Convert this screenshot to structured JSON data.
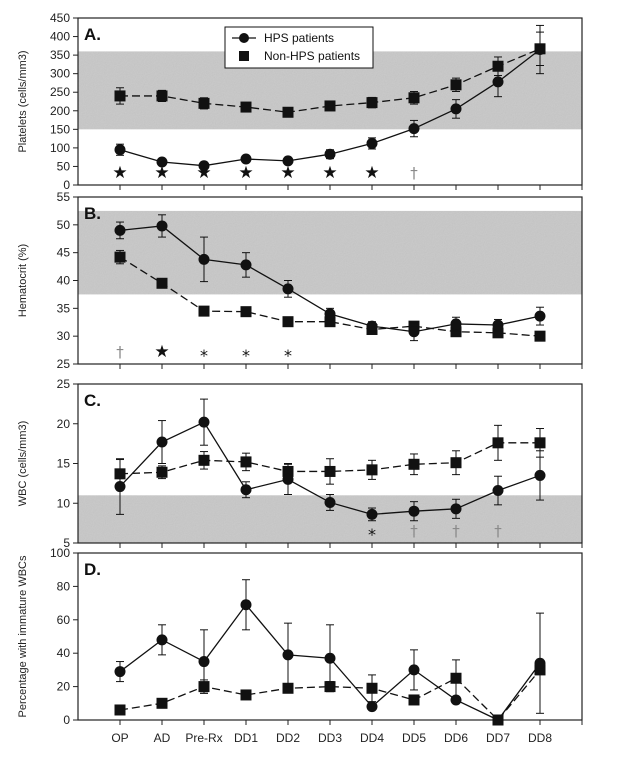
{
  "chart_data": {
    "type": "line",
    "categories": [
      "OP",
      "AD",
      "Pre-Rx",
      "DD1",
      "DD2",
      "DD3",
      "DD4",
      "DD5",
      "DD6",
      "DD7",
      "DD8"
    ],
    "legend": {
      "placement": "top-center (inside panel A)",
      "entries": [
        {
          "name": "HPS patients",
          "marker": "circle",
          "line": "solid"
        },
        {
          "name": "Non-HPS patients",
          "marker": "square",
          "line": "dashed"
        }
      ]
    },
    "colors": {
      "band": "#c8c8c8",
      "line": "#111111",
      "dagger": "#8a8a8a"
    },
    "panels": [
      {
        "id": "A",
        "letter": "A.",
        "ylabel": "Platelets (cells/mm3)",
        "ylim": [
          0,
          450
        ],
        "yticks": [
          0,
          50,
          100,
          150,
          200,
          250,
          300,
          350,
          400,
          450
        ],
        "normal_range": [
          150,
          360
        ],
        "series": [
          {
            "name": "HPS patients",
            "values": [
              95,
              62,
              52,
              70,
              65,
              83,
              112,
              152,
              205,
              278,
              365
            ],
            "err": [
              15,
              6,
              8,
              8,
              8,
              12,
              15,
              22,
              25,
              40,
              65
            ]
          },
          {
            "name": "Non-HPS patients",
            "values": [
              240,
              240,
              220,
              210,
              196,
              213,
              222,
              235,
              270,
              320,
              367
            ],
            "err": [
              22,
              15,
              15,
              10,
              8,
              10,
              14,
              17,
              18,
              25,
              45
            ]
          }
        ],
        "annotations": [
          "★",
          "★",
          "★",
          "★",
          "★",
          "★",
          "★",
          "†",
          "",
          "",
          ""
        ]
      },
      {
        "id": "B",
        "letter": "B.",
        "ylabel": "Hematocrit (%)",
        "ylim": [
          25,
          55
        ],
        "yticks": [
          25,
          30,
          35,
          40,
          45,
          50,
          55
        ],
        "normal_range": [
          37.5,
          52.5
        ],
        "series": [
          {
            "name": "HPS patients",
            "values": [
              49,
              49.8,
              43.8,
              42.8,
              38.5,
              34,
              31.8,
              30.8,
              32.2,
              32,
              33.6
            ],
            "err": [
              1.5,
              2,
              4,
              2.2,
              1.5,
              1,
              0.8,
              1.6,
              1.2,
              1,
              1.6
            ]
          },
          {
            "name": "Non-HPS patients",
            "values": [
              44.2,
              39.5,
              34.5,
              34.4,
              32.6,
              32.6,
              31.2,
              31.8,
              30.8,
              30.6,
              30
            ],
            "err": [
              1.2,
              0,
              0,
              0,
              0,
              0,
              0,
              0,
              0,
              0,
              0
            ]
          }
        ],
        "annotations": [
          "†",
          "★",
          "*",
          "*",
          "*",
          "",
          "",
          "",
          "",
          "",
          ""
        ]
      },
      {
        "id": "C",
        "letter": "C.",
        "ylabel": "WBC (cells/mm3)",
        "ylim": [
          5,
          25
        ],
        "yticks": [
          5,
          10,
          15,
          20,
          25
        ],
        "normal_range": [
          5,
          11
        ],
        "series": [
          {
            "name": "HPS patients",
            "values": [
              12.1,
              17.7,
              20.2,
              11.7,
              13,
              10.1,
              8.6,
              9,
              9.3,
              11.6,
              13.5
            ],
            "err": [
              3.5,
              2.7,
              2.9,
              1,
              1.9,
              1,
              0.8,
              1.2,
              1.2,
              1.8,
              3.1
            ]
          },
          {
            "name": "Non-HPS patients",
            "values": [
              13.7,
              13.9,
              15.4,
              15.2,
              14,
              14,
              14.2,
              14.9,
              15.1,
              17.6,
              17.6
            ],
            "err": [
              1.8,
              0.8,
              1.1,
              1.1,
              1,
              1.6,
              1.2,
              1.3,
              1.5,
              2.2,
              1.8
            ]
          }
        ],
        "annotations": [
          "",
          "",
          "",
          "",
          "",
          "",
          "*",
          "†",
          "†",
          "†",
          ""
        ]
      },
      {
        "id": "D",
        "letter": "D.",
        "ylabel": "Percentage with immature WBCs",
        "ylim": [
          0,
          100
        ],
        "yticks": [
          0,
          20,
          40,
          60,
          80,
          100
        ],
        "normal_range": null,
        "series": [
          {
            "name": "HPS patients",
            "values": [
              29,
              48,
              35,
              69,
              39,
              37,
              8,
              30,
              12,
              0,
              34
            ],
            "err": [
              6,
              9,
              19,
              15,
              19,
              20,
              0,
              12,
              0,
              0,
              30
            ]
          },
          {
            "name": "Non-HPS patients",
            "values": [
              6,
              10,
              20,
              15,
              19,
              20,
              19,
              12,
              25,
              0,
              30
            ],
            "err": [
              0,
              0,
              4,
              0,
              0,
              3,
              8,
              0,
              11,
              0,
              0
            ]
          }
        ],
        "annotations": [
          "",
          "",
          "",
          "",
          "",
          "",
          "",
          "",
          "",
          "",
          ""
        ]
      }
    ]
  }
}
